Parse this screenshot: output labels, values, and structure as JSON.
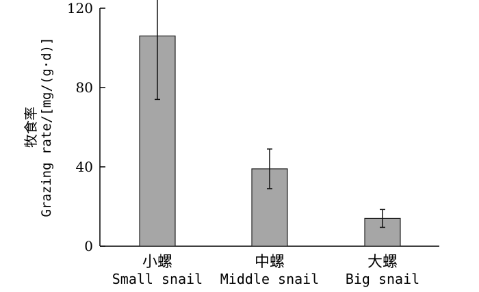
{
  "chart_data": {
    "type": "bar",
    "categories": [
      "小螺",
      "中螺",
      "大螺"
    ],
    "categories_en": [
      "Small snail",
      "Middle snail",
      "Big snail"
    ],
    "values": [
      106,
      39,
      14
    ],
    "errors": [
      32,
      10,
      4.5
    ],
    "ylabel_cn": "牧食率",
    "ylabel_en": "Grazing rate/[mg/(g·d)]",
    "ylim": [
      0,
      120
    ],
    "yticks": [
      0,
      40,
      80,
      120
    ],
    "bar_color": "#a6a6a6",
    "grid": false,
    "legend": "none"
  }
}
